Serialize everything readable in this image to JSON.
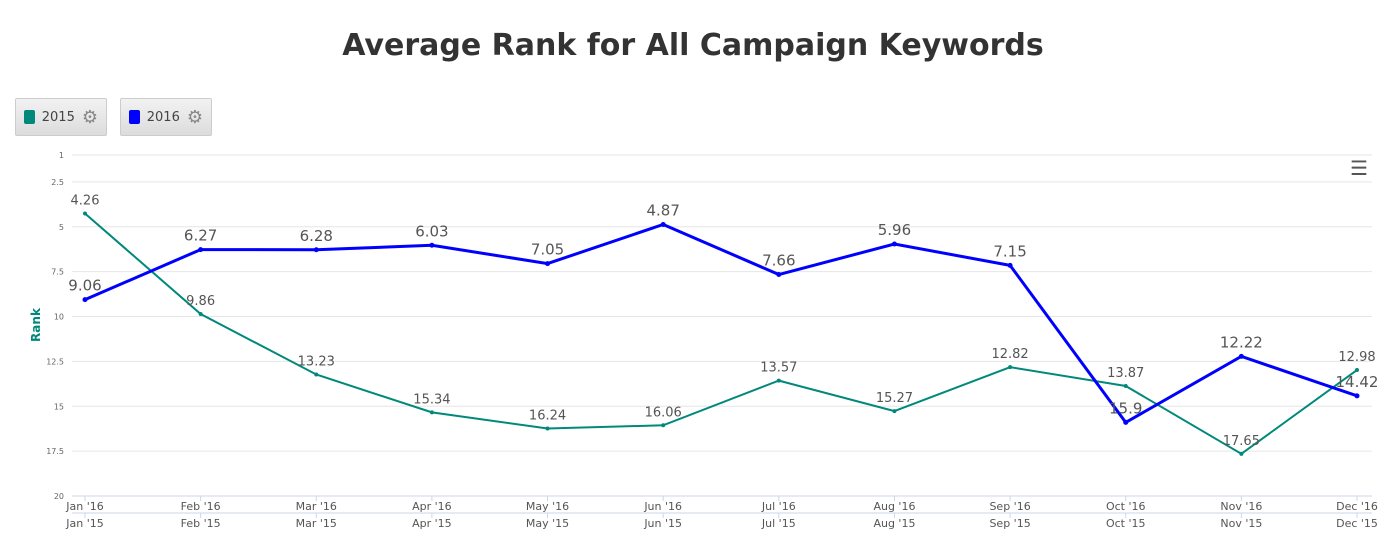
{
  "chart_data": {
    "type": "line",
    "title": "Average Rank for All Campaign Keywords",
    "ylabel": "Rank",
    "ylim": [
      1,
      20
    ],
    "y_reversed": true,
    "yticks": [
      "1",
      "2.5",
      "5",
      "7.5",
      "10",
      "12.5",
      "15",
      "17.5",
      "20"
    ],
    "ytick_values": [
      1,
      2.5,
      5,
      7.5,
      10,
      12.5,
      15,
      17.5,
      20
    ],
    "categories_2016": [
      "Jan '16",
      "Feb '16",
      "Mar '16",
      "Apr '16",
      "May '16",
      "Jun '16",
      "Jul '16",
      "Aug '16",
      "Sep '16",
      "Oct '16",
      "Nov '16",
      "Dec '16"
    ],
    "categories_2015": [
      "Jan '15",
      "Feb '15",
      "Mar '15",
      "Apr '15",
      "May '15",
      "Jun '15",
      "Jul '15",
      "Aug '15",
      "Sep '15",
      "Oct '15",
      "Nov '15",
      "Dec '15"
    ],
    "series": [
      {
        "name": "2015",
        "color": "#00897b",
        "values": [
          4.26,
          9.86,
          13.23,
          15.34,
          16.24,
          16.06,
          13.57,
          15.27,
          12.82,
          13.87,
          17.65,
          12.98
        ]
      },
      {
        "name": "2016",
        "color": "#0000ff",
        "values": [
          9.06,
          6.27,
          6.28,
          6.03,
          7.05,
          4.87,
          7.66,
          5.96,
          7.15,
          15.9,
          12.22,
          14.42
        ]
      }
    ],
    "legend": "top-left",
    "grid": true
  },
  "legend": [
    {
      "label": "2015",
      "color": "#00897b"
    },
    {
      "label": "2016",
      "color": "#0000ff"
    }
  ]
}
